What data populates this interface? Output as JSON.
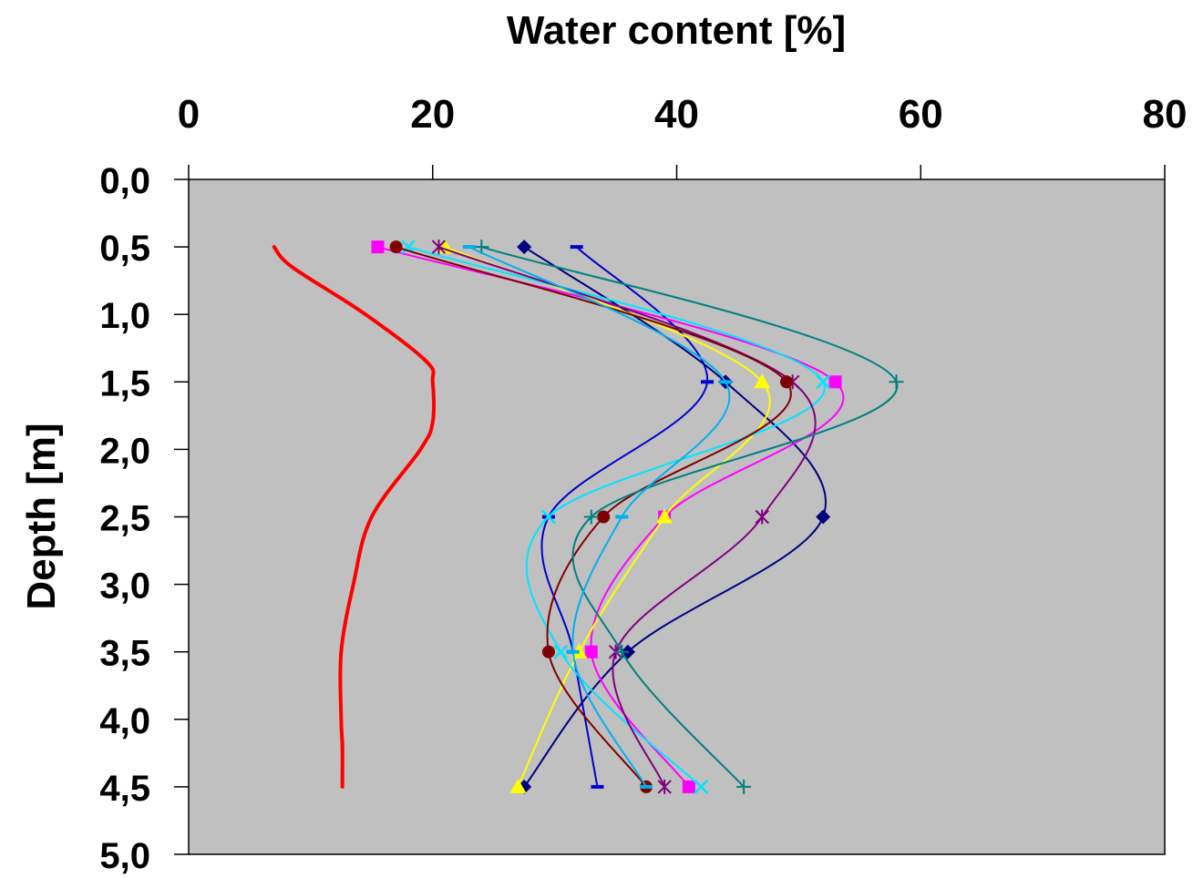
{
  "chart_data": {
    "type": "line",
    "title": "",
    "xlabel": "Water content [%]",
    "ylabel": "Depth [m]",
    "xlim": [
      0,
      80
    ],
    "ylim": [
      0,
      5
    ],
    "y_inverted": true,
    "x_axis_position": "top",
    "x_ticks": [
      "0",
      "20",
      "40",
      "60",
      "80"
    ],
    "y_ticks": [
      "0,0",
      "0,5",
      "1,0",
      "1,5",
      "2,0",
      "2,5",
      "3,0",
      "3,5",
      "4,0",
      "4,5",
      "5,0"
    ],
    "grid": false,
    "legend": "none",
    "plot_background": "#c0c0c0",
    "series": [
      {
        "color": "#0000cc",
        "marker": "dash",
        "depth": [
          0.5,
          1.5,
          2.5,
          3.5,
          4.5
        ],
        "values": [
          31.8,
          42.5,
          29.5,
          31.5,
          33.5
        ]
      },
      {
        "color": "#000080",
        "marker": "diamond",
        "depth": [
          0.5,
          1.5,
          2.5,
          3.5,
          4.5
        ],
        "values": [
          27.5,
          44.0,
          52.0,
          36.0,
          27.5
        ]
      },
      {
        "color": "#ff00ff",
        "marker": "square",
        "depth": [
          0.5,
          1.5,
          2.5,
          3.5,
          4.5
        ],
        "values": [
          15.5,
          53.0,
          39.0,
          33.0,
          41.0
        ]
      },
      {
        "color": "#ffff00",
        "marker": "triangle",
        "depth": [
          0.5,
          1.5,
          2.5,
          3.5,
          4.5
        ],
        "values": [
          21.0,
          47.0,
          39.0,
          32.0,
          27.0
        ]
      },
      {
        "color": "#00e5ff",
        "marker": "x",
        "depth": [
          0.5,
          1.5,
          2.5,
          3.5,
          4.5
        ],
        "values": [
          18.0,
          52.0,
          29.5,
          30.5,
          42.0
        ]
      },
      {
        "color": "#800080",
        "marker": "star",
        "depth": [
          0.5,
          1.5,
          2.5,
          3.5,
          4.5
        ],
        "values": [
          20.5,
          49.5,
          47.0,
          35.0,
          39.0
        ]
      },
      {
        "color": "#800000",
        "marker": "circle",
        "depth": [
          0.5,
          1.5,
          2.5,
          3.5,
          4.5
        ],
        "values": [
          17.0,
          49.0,
          34.0,
          29.5,
          37.5
        ]
      },
      {
        "color": "#008080",
        "marker": "plus",
        "depth": [
          0.5,
          1.5,
          2.5,
          3.5,
          4.5
        ],
        "values": [
          24.0,
          58.0,
          33.0,
          35.5,
          45.5
        ]
      },
      {
        "color": "#00b0f0",
        "marker": "dash",
        "depth": [
          0.5,
          1.5,
          2.5,
          3.5,
          4.5
        ],
        "values": [
          23.0,
          44.0,
          35.5,
          31.5,
          37.5
        ]
      },
      {
        "color": "#ff0000",
        "marker": "none",
        "width": 4,
        "depth": [
          0.5,
          0.65,
          1.0,
          1.35,
          1.5,
          1.8,
          2.0,
          2.5,
          3.0,
          3.5,
          4.0,
          4.2,
          4.5
        ],
        "values": [
          7.0,
          8.5,
          14.5,
          19.5,
          20.0,
          20.0,
          19.0,
          15.0,
          13.5,
          12.5,
          12.5,
          12.6,
          12.6
        ]
      }
    ]
  }
}
